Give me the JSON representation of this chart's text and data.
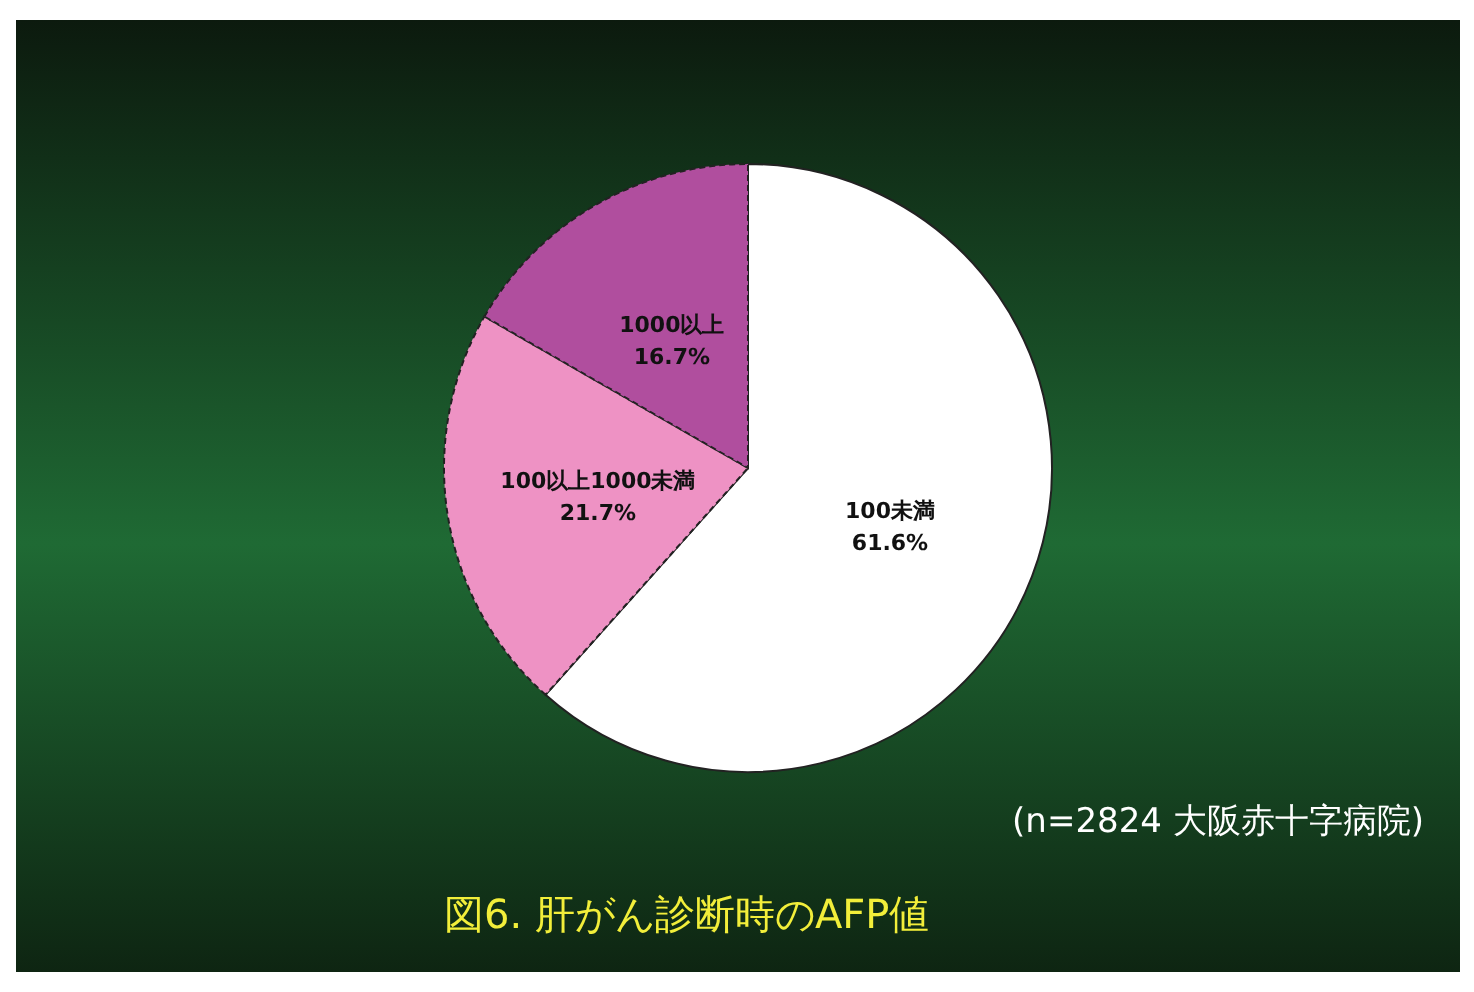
{
  "chart_data": {
    "type": "pie",
    "title": "図6. 肝がん診断時のAFP値",
    "annotations": [
      "(n=2824 大阪赤十字病院)"
    ],
    "categories": [
      "100未満",
      "100以上1000未満",
      "1000以上"
    ],
    "values": [
      61.6,
      21.7,
      16.7
    ],
    "value_labels": [
      "61.6%",
      "21.7%",
      "16.7%"
    ],
    "colors": [
      "#ffffff",
      "#ee92c4",
      "#b04e9e"
    ]
  }
}
